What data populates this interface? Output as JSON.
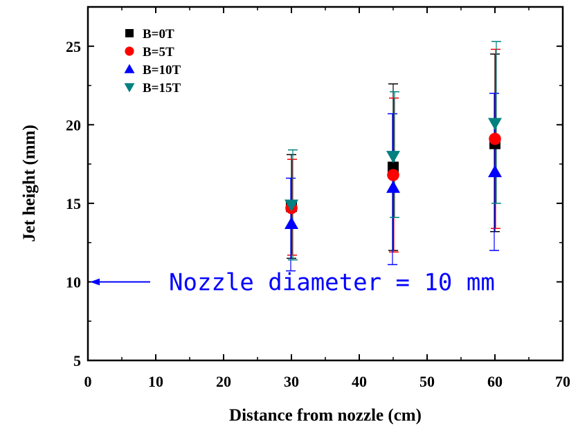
{
  "chart_data": {
    "type": "scatter",
    "title": "",
    "xlabel": "Distance from nozzle (cm)",
    "ylabel": "Jet height (mm)",
    "xlim": [
      0,
      70
    ],
    "ylim": [
      5,
      27.5
    ],
    "x_ticks": [
      0,
      10,
      20,
      30,
      40,
      50,
      60,
      70
    ],
    "y_ticks": [
      5,
      10,
      15,
      20,
      25
    ],
    "grid": false,
    "legend_position": "top-left",
    "series": [
      {
        "name": "B=0T",
        "marker": "square",
        "color": "#000000",
        "x": [
          30,
          45,
          60
        ],
        "y": [
          14.8,
          17.3,
          18.8
        ],
        "err_low": [
          11.5,
          12.0,
          13.2
        ],
        "err_high": [
          18.1,
          22.6,
          24.5
        ]
      },
      {
        "name": "B=5T",
        "marker": "circle",
        "color": "#ff0000",
        "x": [
          30,
          45,
          60
        ],
        "y": [
          14.7,
          16.8,
          19.1
        ],
        "err_low": [
          11.7,
          11.9,
          13.4
        ],
        "err_high": [
          17.8,
          21.7,
          24.8
        ]
      },
      {
        "name": "B=10T",
        "marker": "triangle-up",
        "color": "#0000ff",
        "x": [
          30,
          45,
          60
        ],
        "y": [
          13.7,
          16.0,
          17.0
        ],
        "err_low": [
          10.7,
          11.1,
          12.0
        ],
        "err_high": [
          16.6,
          20.7,
          22.0
        ]
      },
      {
        "name": "B=15T",
        "marker": "triangle-down",
        "color": "#008080",
        "x": [
          30,
          45,
          60
        ],
        "y": [
          14.9,
          18.0,
          20.1
        ],
        "err_low": [
          11.4,
          14.1,
          15.0
        ],
        "err_high": [
          18.4,
          22.1,
          25.3
        ]
      }
    ],
    "annotation": {
      "text": "Nozzle diameter = 10 mm",
      "color": "#0000ff",
      "arrow_y": 10
    }
  }
}
